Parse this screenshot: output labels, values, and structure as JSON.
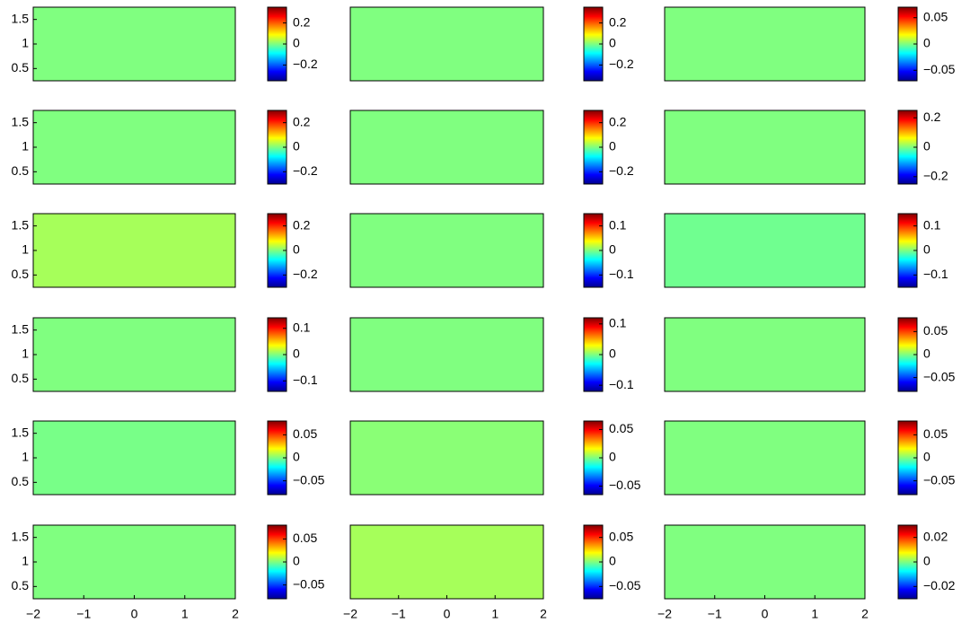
{
  "chart_data": [
    {
      "type": "heatmap",
      "xlim": [
        -2,
        2
      ],
      "ylim": [
        0.25,
        1.75
      ],
      "yticks": [
        0.5,
        1,
        1.5
      ],
      "clim": [
        -0.35,
        0.35
      ],
      "cticks": [
        {
          "value": -0.2,
          "label": "−0.2"
        },
        0,
        0.2
      ],
      "background": "#80ff80"
    },
    {
      "type": "heatmap",
      "xlim": [
        -2,
        2
      ],
      "ylim": [
        0.25,
        1.75
      ],
      "clim": [
        -0.35,
        0.35
      ],
      "cticks": [
        {
          "value": -0.2,
          "label": "−0.2"
        },
        0,
        0.2
      ],
      "background": "#80ff80"
    },
    {
      "type": "heatmap",
      "xlim": [
        -2,
        2
      ],
      "ylim": [
        0.25,
        1.75
      ],
      "clim": [
        -0.07,
        0.07
      ],
      "cticks": [
        {
          "value": -0.05,
          "label": "−0.05"
        },
        0,
        0.05
      ],
      "background": "#80ff80"
    },
    {
      "type": "heatmap",
      "xlim": [
        -2,
        2
      ],
      "ylim": [
        0.25,
        1.75
      ],
      "yticks": [
        0.5,
        1,
        1.5
      ],
      "clim": [
        -0.3,
        0.3
      ],
      "cticks": [
        {
          "value": -0.2,
          "label": "−0.2"
        },
        0,
        0.2
      ],
      "background": "#80ff80"
    },
    {
      "type": "heatmap",
      "xlim": [
        -2,
        2
      ],
      "ylim": [
        0.25,
        1.75
      ],
      "clim": [
        -0.3,
        0.3
      ],
      "cticks": [
        {
          "value": -0.2,
          "label": "−0.2"
        },
        0,
        0.2
      ],
      "background": "#80ff80"
    },
    {
      "type": "heatmap",
      "xlim": [
        -2,
        2
      ],
      "ylim": [
        0.25,
        1.75
      ],
      "clim": [
        -0.25,
        0.25
      ],
      "cticks": [
        {
          "value": -0.2,
          "label": "−0.2"
        },
        0,
        0.2
      ],
      "background": "#80ff80"
    },
    {
      "type": "heatmap",
      "xlim": [
        -2,
        2
      ],
      "ylim": [
        0.25,
        1.75
      ],
      "yticks": [
        0.5,
        1,
        1.5
      ],
      "clim": [
        -0.3,
        0.3
      ],
      "cticks": [
        {
          "value": -0.2,
          "label": "−0.2"
        },
        0,
        0.2
      ],
      "background": "#a6ff5a"
    },
    {
      "type": "heatmap",
      "xlim": [
        -2,
        2
      ],
      "ylim": [
        0.25,
        1.75
      ],
      "clim": [
        -0.15,
        0.15
      ],
      "cticks": [
        {
          "value": -0.1,
          "label": "−0.1"
        },
        0,
        0.1
      ],
      "background": "#80ff80"
    },
    {
      "type": "heatmap",
      "xlim": [
        -2,
        2
      ],
      "ylim": [
        0.25,
        1.75
      ],
      "clim": [
        -0.15,
        0.15
      ],
      "cticks": [
        {
          "value": -0.1,
          "label": "−0.1"
        },
        0,
        0.1
      ],
      "background": "#70ff90"
    },
    {
      "type": "heatmap",
      "xlim": [
        -2,
        2
      ],
      "ylim": [
        0.25,
        1.75
      ],
      "yticks": [
        0.5,
        1,
        1.5
      ],
      "clim": [
        -0.14,
        0.14
      ],
      "cticks": [
        {
          "value": -0.1,
          "label": "−0.1"
        },
        0,
        0.1
      ],
      "background": "#80ff80"
    },
    {
      "type": "heatmap",
      "xlim": [
        -2,
        2
      ],
      "ylim": [
        0.25,
        1.75
      ],
      "clim": [
        -0.12,
        0.12
      ],
      "cticks": [
        {
          "value": -0.1,
          "label": "−0.1"
        },
        0,
        0.1
      ],
      "background": "#80ff80"
    },
    {
      "type": "heatmap",
      "xlim": [
        -2,
        2
      ],
      "ylim": [
        0.25,
        1.75
      ],
      "clim": [
        -0.08,
        0.08
      ],
      "cticks": [
        {
          "value": -0.05,
          "label": "−0.05"
        },
        0,
        0.05
      ],
      "background": "#80ff80"
    },
    {
      "type": "heatmap",
      "xlim": [
        -2,
        2
      ],
      "ylim": [
        0.25,
        1.75
      ],
      "yticks": [
        0.5,
        1,
        1.5
      ],
      "clim": [
        -0.08,
        0.08
      ],
      "cticks": [
        {
          "value": -0.05,
          "label": "−0.05"
        },
        0,
        0.05
      ],
      "background": "#78ff88"
    },
    {
      "type": "heatmap",
      "xlim": [
        -2,
        2
      ],
      "ylim": [
        0.25,
        1.75
      ],
      "clim": [
        -0.065,
        0.065
      ],
      "cticks": [
        {
          "value": -0.05,
          "label": "−0.05"
        },
        0,
        0.05
      ],
      "background": "#8aff76"
    },
    {
      "type": "heatmap",
      "xlim": [
        -2,
        2
      ],
      "ylim": [
        0.25,
        1.75
      ],
      "clim": [
        -0.08,
        0.08
      ],
      "cticks": [
        {
          "value": -0.05,
          "label": "−0.05"
        },
        0,
        0.05
      ],
      "background": "#80ff80"
    },
    {
      "type": "heatmap",
      "xlim": [
        -2,
        2
      ],
      "ylim": [
        0.25,
        1.75
      ],
      "yticks": [
        0.5,
        1,
        1.5
      ],
      "xticks": [
        {
          "value": -2,
          "label": "−2"
        },
        {
          "value": -1,
          "label": "−1"
        },
        0,
        1,
        2
      ],
      "clim": [
        -0.08,
        0.08
      ],
      "cticks": [
        {
          "value": -0.05,
          "label": "−0.05"
        },
        0,
        0.05
      ],
      "background": "#80ff80"
    },
    {
      "type": "heatmap",
      "xlim": [
        -2,
        2
      ],
      "ylim": [
        0.25,
        1.75
      ],
      "xticks": [
        {
          "value": -2,
          "label": "−2"
        },
        {
          "value": -1,
          "label": "−1"
        },
        0,
        1,
        2
      ],
      "clim": [
        -0.075,
        0.075
      ],
      "cticks": [
        {
          "value": -0.05,
          "label": "−0.05"
        },
        0,
        0.05
      ],
      "background": "#a6ff5a"
    },
    {
      "type": "heatmap",
      "xlim": [
        -2,
        2
      ],
      "ylim": [
        0.25,
        1.75
      ],
      "xticks": [
        {
          "value": -2,
          "label": "−2"
        },
        {
          "value": -1,
          "label": "−1"
        },
        0,
        1,
        2
      ],
      "clim": [
        -0.03,
        0.03
      ],
      "cticks": [
        {
          "value": -0.02,
          "label": "−0.02"
        },
        0,
        0.02
      ],
      "background": "#80ff80"
    }
  ]
}
